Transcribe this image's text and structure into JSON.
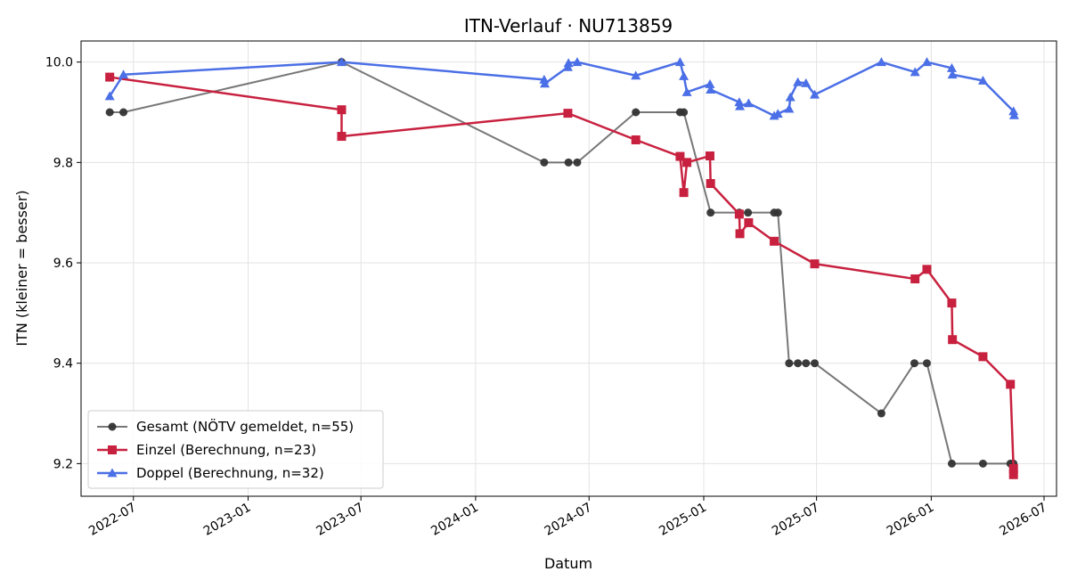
{
  "chart_data": {
    "type": "line",
    "title": "ITN-Verlauf · NU713859",
    "xlabel": "Datum",
    "ylabel": "ITN  (kleiner = besser)",
    "x_type": "date",
    "xlim": [
      "2022-04-08",
      "2026-07-21"
    ],
    "ylim": [
      9.135,
      10.042
    ],
    "y_inverted": false,
    "grid": true,
    "legend_position": "lower-left",
    "x_ticks": [
      "2022-07-01",
      "2023-01-01",
      "2023-07-01",
      "2024-01-01",
      "2024-07-01",
      "2025-01-01",
      "2025-07-01",
      "2026-01-01",
      "2026-07-01"
    ],
    "x_tick_labels": [
      "2022-07",
      "2023-01",
      "2023-07",
      "2024-01",
      "2024-07",
      "2025-01",
      "2025-07",
      "2026-01",
      "2026-07"
    ],
    "y_ticks": [
      9.2,
      9.4,
      9.6,
      9.8,
      10.0
    ],
    "y_tick_labels": [
      "9.2",
      "9.4",
      "9.6",
      "9.8",
      "10.0"
    ],
    "series": [
      {
        "name": "Gesamt (NÖTV gemeldet, n=55)",
        "color": "#555555",
        "marker": "circle",
        "points": [
          [
            "2022-05-24",
            9.9
          ],
          [
            "2022-06-15",
            9.9
          ],
          [
            "2023-05-31",
            10.0
          ],
          [
            "2024-04-20",
            9.8
          ],
          [
            "2024-05-29",
            9.8
          ],
          [
            "2024-06-12",
            9.8
          ],
          [
            "2024-09-14",
            9.9
          ],
          [
            "2024-11-24",
            9.9
          ],
          [
            "2024-11-30",
            9.9
          ],
          [
            "2025-01-12",
            9.7
          ],
          [
            "2025-02-27",
            9.7
          ],
          [
            "2025-03-13",
            9.7
          ],
          [
            "2025-04-24",
            9.7
          ],
          [
            "2025-04-30",
            9.7
          ],
          [
            "2025-05-18",
            9.4
          ],
          [
            "2025-06-01",
            9.4
          ],
          [
            "2025-06-14",
            9.4
          ],
          [
            "2025-06-28",
            9.4
          ],
          [
            "2025-10-13",
            9.3
          ],
          [
            "2025-12-05",
            9.4
          ],
          [
            "2025-12-25",
            9.4
          ],
          [
            "2026-02-03",
            9.2
          ],
          [
            "2026-03-25",
            9.2
          ],
          [
            "2026-05-08",
            9.2
          ],
          [
            "2026-05-13",
            9.2
          ]
        ]
      },
      {
        "name": "Einzel (Berechnung, n=23)",
        "color": "#c8213f",
        "marker": "square",
        "points": [
          [
            "2022-05-24",
            9.97
          ],
          [
            "2023-05-31",
            9.905
          ],
          [
            "2023-05-31",
            9.852
          ],
          [
            "2024-05-28",
            9.898
          ],
          [
            "2024-09-14",
            9.845
          ],
          [
            "2024-11-24",
            9.812
          ],
          [
            "2024-11-30",
            9.74
          ],
          [
            "2024-12-05",
            9.8
          ],
          [
            "2025-01-11",
            9.813
          ],
          [
            "2025-01-12",
            9.758
          ],
          [
            "2025-02-27",
            9.697
          ],
          [
            "2025-02-28",
            9.658
          ],
          [
            "2025-03-14",
            9.68
          ],
          [
            "2025-04-24",
            9.643
          ],
          [
            "2025-06-28",
            9.598
          ],
          [
            "2025-12-06",
            9.568
          ],
          [
            "2025-12-25",
            9.587
          ],
          [
            "2026-02-03",
            9.52
          ],
          [
            "2026-02-04",
            9.447
          ],
          [
            "2026-03-25",
            9.413
          ],
          [
            "2026-05-08",
            9.358
          ],
          [
            "2026-05-13",
            9.19
          ],
          [
            "2026-05-13",
            9.178
          ]
        ]
      },
      {
        "name": "Doppel (Berechnung, n=32)",
        "color": "#4b6fe6",
        "marker": "triangle",
        "points": [
          [
            "2022-05-24",
            9.932
          ],
          [
            "2022-06-15",
            9.975
          ],
          [
            "2023-05-31",
            10.0
          ],
          [
            "2024-04-20",
            9.965
          ],
          [
            "2024-04-21",
            9.957
          ],
          [
            "2024-05-28",
            9.99
          ],
          [
            "2024-05-29",
            9.998
          ],
          [
            "2024-06-12",
            10.0
          ],
          [
            "2024-09-14",
            9.973
          ],
          [
            "2024-11-24",
            10.0
          ],
          [
            "2024-11-30",
            9.972
          ],
          [
            "2024-12-05",
            9.94
          ],
          [
            "2025-01-11",
            9.956
          ],
          [
            "2025-01-12",
            9.945
          ],
          [
            "2025-02-27",
            9.92
          ],
          [
            "2025-02-28",
            9.912
          ],
          [
            "2025-03-14",
            9.918
          ],
          [
            "2025-04-24",
            9.893
          ],
          [
            "2025-04-30",
            9.897
          ],
          [
            "2025-05-18",
            9.907
          ],
          [
            "2025-05-20",
            9.93
          ],
          [
            "2025-06-01",
            9.96
          ],
          [
            "2025-06-14",
            9.958
          ],
          [
            "2025-06-28",
            9.935
          ],
          [
            "2025-10-13",
            10.0
          ],
          [
            "2025-12-06",
            9.98
          ],
          [
            "2025-12-25",
            10.0
          ],
          [
            "2026-02-03",
            9.988
          ],
          [
            "2026-02-04",
            9.975
          ],
          [
            "2026-03-25",
            9.963
          ],
          [
            "2026-05-13",
            9.902
          ],
          [
            "2026-05-14",
            9.894
          ]
        ]
      }
    ]
  }
}
